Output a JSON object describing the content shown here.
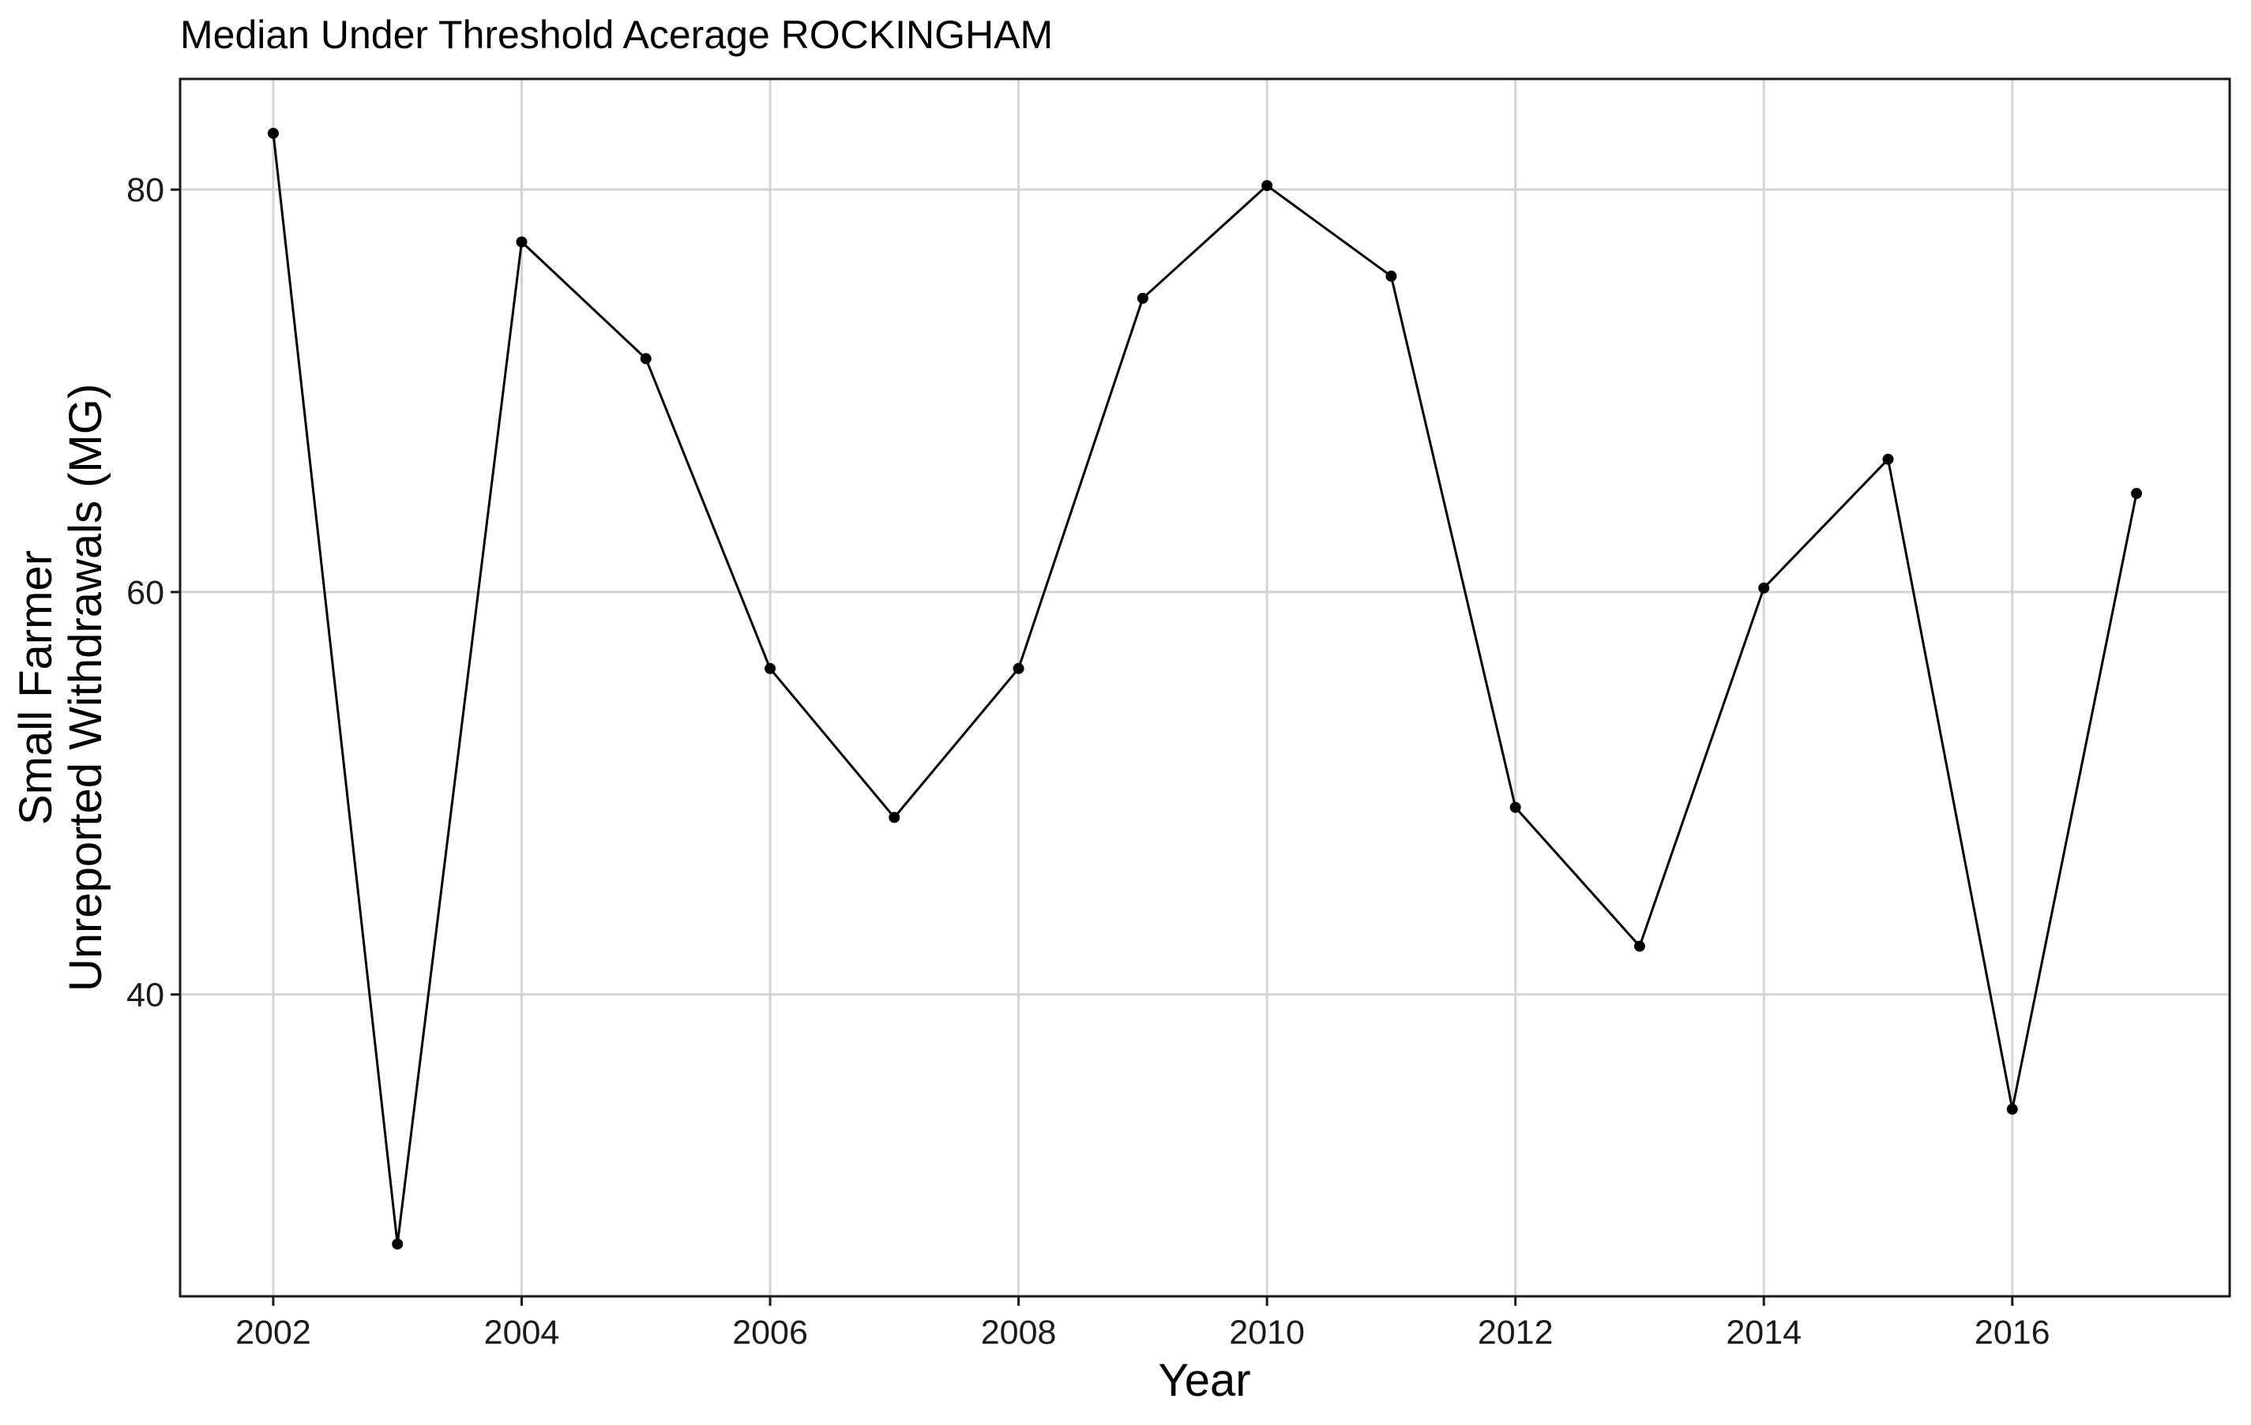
{
  "chart_data": {
    "type": "line",
    "title": "Median Under Threshold Acerage ROCKINGHAM",
    "xlabel": "Year",
    "ylabel_lines": [
      "Small Farmer",
      "Unreported Withdrawals (MG)"
    ],
    "xlim": [
      2001.25,
      2017.75
    ],
    "ylim": [
      25,
      85.5
    ],
    "x_ticks": [
      2002,
      2004,
      2006,
      2008,
      2010,
      2012,
      2014,
      2016
    ],
    "y_ticks": [
      40,
      60,
      80
    ],
    "grid": true,
    "legend": "none",
    "series": [
      {
        "x": [
          2002,
          2003,
          2004,
          2005,
          2006,
          2007,
          2008,
          2009,
          2010,
          2011,
          2012,
          2013,
          2014,
          2015,
          2016,
          2017
        ],
        "y": [
          82.8,
          27.6,
          77.4,
          71.6,
          56.2,
          48.8,
          56.2,
          74.6,
          80.2,
          75.7,
          49.3,
          42.4,
          60.2,
          66.6,
          34.3,
          64.9
        ]
      }
    ],
    "colors": {
      "line": "#000000",
      "point": "#000000",
      "grid": "#d4d4d4",
      "panel_border": "#1a1a1a",
      "background": "#ffffff"
    }
  }
}
